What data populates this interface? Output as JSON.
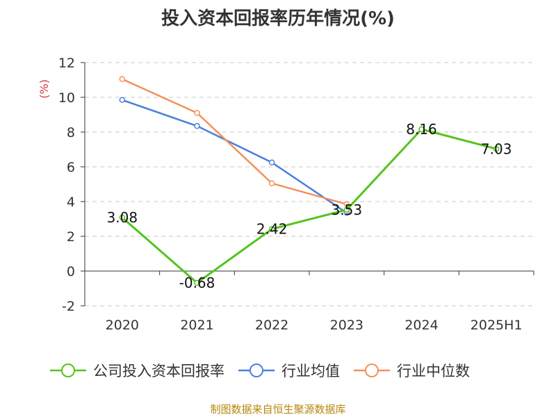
{
  "chart_data": {
    "type": "line",
    "title": "投入资本回报率历年情况(%)",
    "ylabel": "(%)",
    "xlabel": "",
    "categories": [
      "2020",
      "2021",
      "2022",
      "2023",
      "2024",
      "2025H1"
    ],
    "ylim": [
      -2,
      12
    ],
    "yticks": [
      -2,
      0,
      2,
      4,
      6,
      8,
      10,
      12
    ],
    "grid": true,
    "legend_position": "bottom",
    "series": [
      {
        "name": "公司投入资本回报率",
        "color": "#52c41a",
        "values": [
          3.08,
          -0.68,
          2.42,
          3.53,
          8.16,
          7.03
        ],
        "labels": [
          "3.08",
          "-0.68",
          "2.42",
          "3.53",
          "8.16",
          "7.03"
        ]
      },
      {
        "name": "行业均值",
        "color": "#4a7fdc",
        "values": [
          9.85,
          8.35,
          6.25,
          3.35,
          null,
          null
        ]
      },
      {
        "name": "行业中位数",
        "color": "#f4905a",
        "values": [
          11.05,
          9.1,
          5.05,
          3.85,
          null,
          null
        ]
      }
    ]
  },
  "source": "制图数据来自恒生聚源数据库"
}
